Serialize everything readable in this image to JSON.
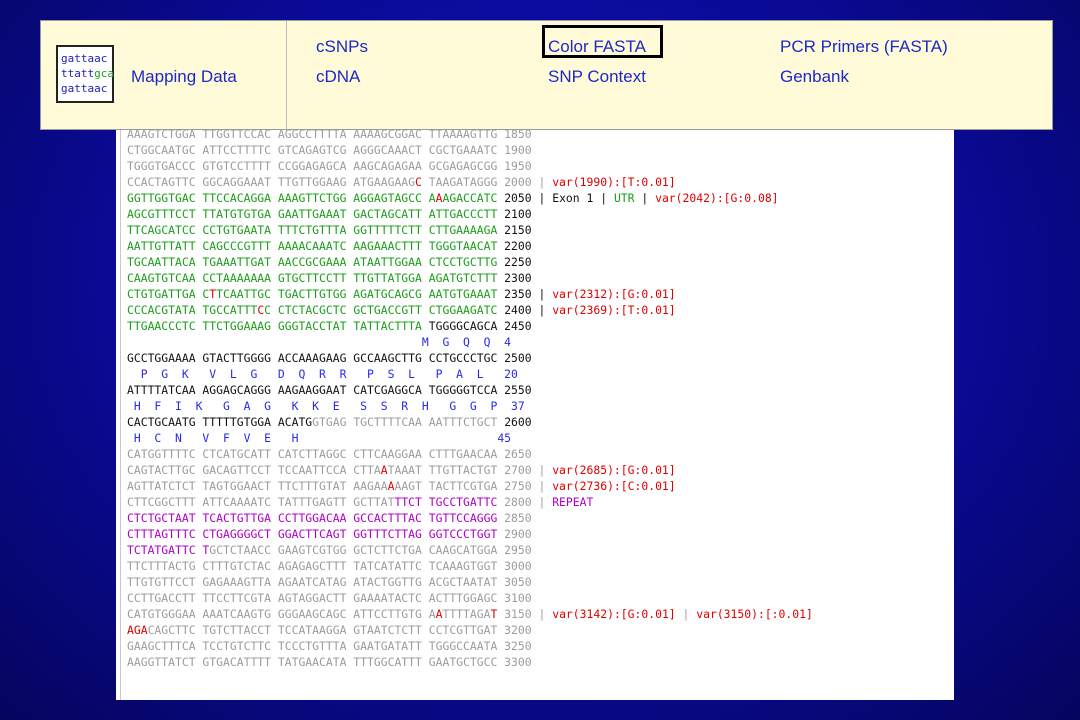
{
  "toolbar": {
    "logo_lines": [
      "gattaac",
      "ttattgca",
      "gattaac"
    ],
    "mapping_data": "Mapping Data",
    "csnps": "cSNPs",
    "cdna": "cDNA",
    "color_fasta": "Color FASTA",
    "snp_context": "SNP Context",
    "pcr_primers": "PCR Primers (FASTA)",
    "genbank": "Genbank"
  },
  "sequence": {
    "lines": [
      {
        "s": [
          [
            "c-gray",
            "AAAGTCTGGA TTGGTTCCAC AGGCCTTTTA AAAAGCGGAC TTAAAAGTTG 1850"
          ]
        ]
      },
      {
        "s": [
          [
            "c-gray",
            "CTGGCAATGC ATTCCTTTTC GTCAGAGTCG AGGGCAAACT CGCTGAAATC 1900"
          ]
        ]
      },
      {
        "s": [
          [
            "c-gray",
            "TGGGTGACCC GTGTCCTTTT CCGGAGAGCA AAGCAGAGAA GCGAGAGCGG 1950"
          ]
        ]
      },
      {
        "s": [
          [
            "c-gray",
            "CCACTAGTTC GGCAGGAAAT TTGTTGGAAG ATGAAGAAG"
          ],
          [
            "c-red",
            "C"
          ],
          [
            "c-gray",
            " TAAGATAGGG 2000 | "
          ],
          [
            "c-red",
            "var(1990):[T:0.01]"
          ]
        ]
      },
      {
        "s": [
          [
            "c-green",
            "GGTTGGTGAC TTCCACAGGA AAAGTTCTGG AGGAGTAGCC A"
          ],
          [
            "c-red",
            "A"
          ],
          [
            "c-green",
            "AGACCATC"
          ],
          [
            "c-dark",
            " 2050 | Exon 1 | "
          ],
          [
            "c-green",
            "UTR"
          ],
          [
            "c-dark",
            " | "
          ],
          [
            "c-red",
            "var(2042):[G:0.08]"
          ]
        ]
      },
      {
        "s": [
          [
            "c-green",
            "AGCGTTTCCT TTATGTGTGA GAATTGAAAT GACTAGCATT ATTGACCCTT"
          ],
          [
            "c-dark",
            " 2100"
          ]
        ]
      },
      {
        "s": [
          [
            "c-green",
            "TTCAGCATCC CCTGTGAATA TTTCTGTTTA GGTTTTTCTT CTTGAAAAGA"
          ],
          [
            "c-dark",
            " 2150"
          ]
        ]
      },
      {
        "s": [
          [
            "c-green",
            "AATTGTTATT CAGCCCGTTT AAAACAAATC AAGAAACTTT TGGGTAACAT"
          ],
          [
            "c-dark",
            " 2200"
          ]
        ]
      },
      {
        "s": [
          [
            "c-green",
            "TGCAATTACA TGAAATTGAT AACCGCGAAA ATAATTGGAA CTCCTGCTTG"
          ],
          [
            "c-dark",
            " 2250"
          ]
        ]
      },
      {
        "s": [
          [
            "c-green",
            "CAAGTGTCAA CCTAAAAAAA GTGCTTCCTT TTGTTATGGA AGATGTCTTT"
          ],
          [
            "c-dark",
            " 2300"
          ]
        ]
      },
      {
        "s": [
          [
            "c-green",
            "CTGTGATTGA C"
          ],
          [
            "c-red",
            "T"
          ],
          [
            "c-green",
            "TCAATTGC TGACTTGTGG AGATGCAGCG AATGTGAAAT"
          ],
          [
            "c-dark",
            " 2350 | "
          ],
          [
            "c-red",
            "var(2312):[G:0.01]"
          ]
        ]
      },
      {
        "s": [
          [
            "c-green",
            "CCCACGTATA TGCCATTT"
          ],
          [
            "c-red",
            "C"
          ],
          [
            "c-green",
            "C CTCTACGCTC GCTGACCGTT CTGGAAGATC"
          ],
          [
            "c-dark",
            " 2400 | "
          ],
          [
            "c-red",
            "var(2369):[T:0.01]"
          ]
        ]
      },
      {
        "s": [
          [
            "c-green",
            "TTGAACCCTC TTCTGGAAAG GGGTACCTAT TATTACTTTA"
          ],
          [
            "c-black",
            " TGGGGCAGCA 2450"
          ]
        ]
      },
      {
        "s": [
          [
            "c-blue",
            "                                           M  G  Q  Q  4"
          ]
        ]
      },
      {
        "s": [
          [
            "c-black",
            "GCCTGGAAAA GTACTTGGGG ACCAAAGAAG GCCAAGCTTG CCTGCCCTGC 2500"
          ]
        ]
      },
      {
        "s": [
          [
            "c-blue",
            "  P  G  K   V  L  G   D  Q  R  R   P  S  L   P  A  L   20"
          ]
        ]
      },
      {
        "s": [
          [
            "c-black",
            "ATTTTATCAA AGGAGCAGGG AAGAAGGAAT CATCGAGGCA TGGGGGTCCA 2550"
          ]
        ]
      },
      {
        "s": [
          [
            "c-blue",
            " H  F  I  K   G  A  G   K  K  E   S  S  R  H   G  G  P  37"
          ]
        ]
      },
      {
        "s": [
          [
            "c-black",
            "CACTGCAATG TTTTTGTGGA ACATG"
          ],
          [
            "c-gray",
            "GTGAG TGCTTTTCAA AATTTCTGCT"
          ],
          [
            "c-black",
            " 2600"
          ]
        ]
      },
      {
        "s": [
          [
            "c-blue",
            " H  C  N   V  F  V  E   H                             45"
          ]
        ]
      },
      {
        "s": [
          [
            "c-gray",
            "CATGGTTTTC CTCATGCATT CATCTTAGGC CTTCAAGGAA CTTTGAACAA 2650"
          ]
        ]
      },
      {
        "s": [
          [
            "c-gray",
            "CAGTACTTGC GACAGTTCCT TCCAATTCCA CTTA"
          ],
          [
            "c-red",
            "A"
          ],
          [
            "c-gray",
            "TAAAT TTGTTACTGT 2700 | "
          ],
          [
            "c-red",
            "var(2685):[G:0.01]"
          ]
        ]
      },
      {
        "s": [
          [
            "c-gray",
            "AGTTATCTCT TAGTGGAACT TTCTTTGTAT AAGAA"
          ],
          [
            "c-red",
            "A"
          ],
          [
            "c-gray",
            "AAGT TACTTCGTGA 2750 | "
          ],
          [
            "c-red",
            "var(2736):[C:0.01]"
          ]
        ]
      },
      {
        "s": [
          [
            "c-gray",
            "CTTCGGCTTT ATTCAAAATC TATTTGAGTT GCTTAT"
          ],
          [
            "c-purple",
            "TTCT TGCCTGATTC"
          ],
          [
            "c-gray",
            " 2800 | "
          ],
          [
            "c-purple",
            "REPEAT"
          ]
        ]
      },
      {
        "s": [
          [
            "c-purple",
            "CTCTGCTAAT TCACTGTTGA CCTTGGACAA GCCACTTTAC TGTTCCAGGG"
          ],
          [
            "c-gray",
            " 2850"
          ]
        ]
      },
      {
        "s": [
          [
            "c-purple",
            "CTTTAGTTTC CTGAGGGGCT GGACTTCAGT GGTTTCTTAG GGTCCCTGGT"
          ],
          [
            "c-gray",
            " 2900"
          ]
        ]
      },
      {
        "s": [
          [
            "c-purple",
            "TCTATGATTC T"
          ],
          [
            "c-gray",
            "GCTCTAACC GAAGTCGTGG GCTCTTCTGA CAAGCATGGA 2950"
          ]
        ]
      },
      {
        "s": [
          [
            "c-gray",
            "TTCTTTACTG CTTTGTCTAC AGAGAGCTTT TATCATATTC TCAAAGTGGT 3000"
          ]
        ]
      },
      {
        "s": [
          [
            "c-gray",
            "TTGTGTTCCT GAGAAAGTTA AGAATCATAG ATACTGGTTG ACGCTAATAT 3050"
          ]
        ]
      },
      {
        "s": [
          [
            "c-gray",
            "CCTTGACCTT TTCCTTCGTA AGTAGGACTT GAAAATACTC ACTTTGGAGC 3100"
          ]
        ]
      },
      {
        "s": [
          [
            "c-gray",
            "CATGTGGGAA AAATCAAGTG GGGAAGCAGC ATTCCTTGTG A"
          ],
          [
            "c-red",
            "A"
          ],
          [
            "c-gray",
            "TTTTAGA"
          ],
          [
            "c-red",
            "T"
          ],
          [
            "c-gray",
            " 3150 | "
          ],
          [
            "c-red",
            "var(3142):[G:0.01]"
          ],
          [
            "c-gray",
            " | "
          ],
          [
            "c-red",
            "var(3150):[:0.01]"
          ]
        ]
      },
      {
        "s": [
          [
            "c-red",
            "AGA"
          ],
          [
            "c-gray",
            "CAGCTTC TGTCTTACCT TCCATAAGGA GTAATCTCTT CCTCGTTGAT 3200"
          ]
        ]
      },
      {
        "s": [
          [
            "c-gray",
            "GAAGCTTTCA TCCTGTCTTC TCCCTGTTTA GAATGATATT TGGGCCAATA 3250"
          ]
        ]
      },
      {
        "s": [
          [
            "c-gray",
            "AAGGTTATCT GTGACATTTT TATGAACATA TTTGGCATTT GAATGCTGCC 3300"
          ]
        ]
      }
    ]
  }
}
